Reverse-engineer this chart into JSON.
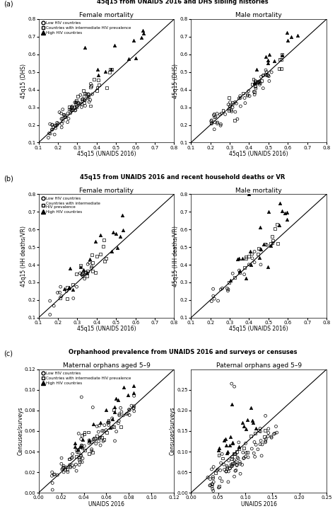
{
  "panel_a_title": "45q15 from UNAIDS 2016 and DHS sibling histories",
  "panel_b_title": "45q15 from UNAIDS 2016 and recent household deaths or VR",
  "panel_c_title": "Orphanhood prevalence from UNAIDS 2016 and surveys or censuses",
  "female_title": "Female mortality",
  "male_title": "Male mortality",
  "maternal_title": "Maternal orphans aged 5–9",
  "paternal_title": "Paternal orphans aged 5–9",
  "legend_low": "Low HIV countries",
  "legend_int": "Countries with intermediate HIV prevalence",
  "legend_int_b": "Countries with intermediate\nHIV prevalence",
  "legend_high": "High HIV countries",
  "panel_a_xlabel": "45q15 (UNAIDS 2016)",
  "panel_b_xlabel": "45q15 (UNAIDS 2016)",
  "panel_c_xlabel_mat": "UNAIDS 2016",
  "panel_c_xlabel_pat": "UNAIDS 2016",
  "panel_a_ylabel_f": "45q15 (DHS)",
  "panel_a_ylabel_m": "45q15 (DHS)",
  "panel_b_ylabel_f": "45q15 (HH deaths/VR)",
  "panel_b_ylabel_m": "45q15 (HH deaths/VR)",
  "panel_c_ylabel_mat": "Censuses/surveys",
  "panel_c_ylabel_pat": "Censuses/surveys",
  "panel_ab_xlim": [
    0.1,
    0.8
  ],
  "panel_ab_ylim": [
    0.1,
    0.8
  ],
  "panel_ab_xticks": [
    0.1,
    0.2,
    0.3,
    0.4,
    0.5,
    0.6,
    0.7,
    0.8
  ],
  "panel_ab_yticks": [
    0.1,
    0.2,
    0.3,
    0.4,
    0.5,
    0.6,
    0.7,
    0.8
  ],
  "panel_c_xlim_mat": [
    0.0,
    0.12
  ],
  "panel_c_ylim_mat": [
    0.0,
    0.12
  ],
  "panel_c_xticks_mat": [
    0.0,
    0.02,
    0.04,
    0.06,
    0.08,
    0.1,
    0.12
  ],
  "panel_c_yticks_mat": [
    0.0,
    0.02,
    0.04,
    0.06,
    0.08,
    0.1,
    0.12
  ],
  "panel_c_xlim_pat": [
    0.0,
    0.25
  ],
  "panel_c_ylim_pat": [
    0.0,
    0.3
  ],
  "panel_c_xticks_pat": [
    0.0,
    0.05,
    0.1,
    0.15,
    0.2,
    0.25
  ],
  "panel_c_yticks_pat": [
    0.0,
    0.05,
    0.1,
    0.15,
    0.2,
    0.25
  ]
}
